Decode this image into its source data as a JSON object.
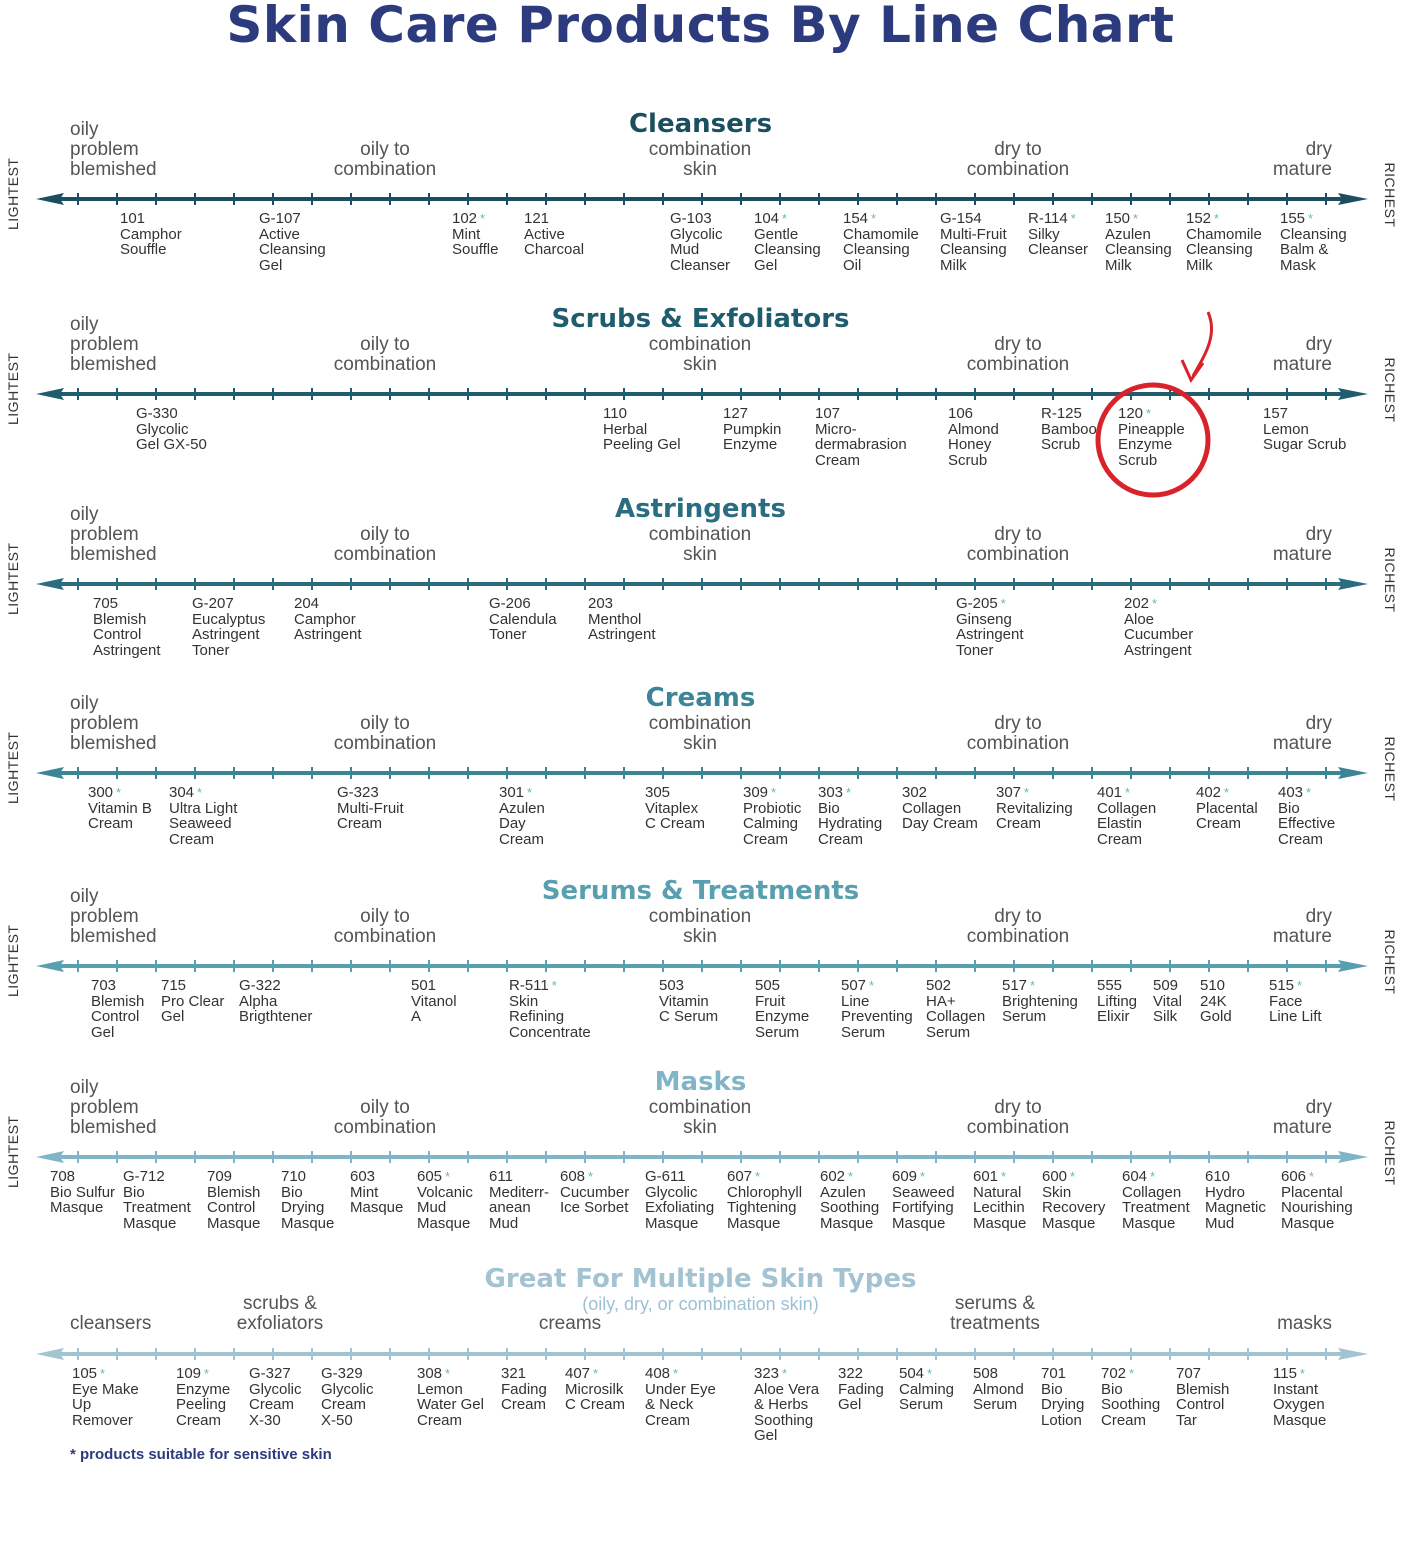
{
  "title": "Skin Care Products By Line Chart",
  "side_labels": {
    "left": "LIGHTEST",
    "right": "RICHEST"
  },
  "skin_labels": {
    "oily": "oily\nproblem\nblemished",
    "oily_combo": "oily to\ncombination",
    "combo": "combination\nskin",
    "dry_combo": "dry to\ncombination",
    "dry": "dry\nmature"
  },
  "sections": [
    {
      "title": "Cleansers",
      "color": "#1b4f5f",
      "items": [
        {
          "code": "101",
          "star": "",
          "name": "Camphor\nSouffle"
        },
        {
          "code": "G-107",
          "star": "",
          "name": "Active\nCleansing\nGel"
        },
        {
          "code": "102",
          "star": "*",
          "name": "Mint\nSouffle"
        },
        {
          "code": "121",
          "star": "",
          "name": "Active\nCharcoal"
        },
        {
          "code": "G-103",
          "star": "",
          "name": "Glycolic\nMud\nCleanser"
        },
        {
          "code": "104",
          "star": "*",
          "name": "Gentle\nCleansing\nGel"
        },
        {
          "code": "154",
          "star": "*",
          "name": "Chamomile\nCleansing\nOil"
        },
        {
          "code": "G-154",
          "star": "",
          "name": "Multi-Fruit\nCleansing\nMilk"
        },
        {
          "code": "R-114",
          "star": "*",
          "name": "Silky\nCleanser"
        },
        {
          "code": "150",
          "star": "*",
          "name": "Azulen\nCleansing\nMilk"
        },
        {
          "code": "152",
          "star": "*",
          "name": "Chamomile\nCleansing\nMilk"
        },
        {
          "code": "155",
          "star": "*",
          "name": "Cleansing\nBalm &\nMask"
        }
      ]
    },
    {
      "title": "Scrubs & Exfoliators",
      "color": "#1f5c6d",
      "items": [
        {
          "code": "G-330",
          "star": "",
          "name": "Glycolic\nGel GX-50"
        },
        {
          "code": "110",
          "star": "",
          "name": "Herbal\nPeeling Gel"
        },
        {
          "code": "127",
          "star": "",
          "name": "Pumpkin\nEnzyme"
        },
        {
          "code": "107",
          "star": "",
          "name": "Micro-\ndermabrasion\nCream"
        },
        {
          "code": "106",
          "star": "",
          "name": "Almond\nHoney\nScrub"
        },
        {
          "code": "R-125",
          "star": "",
          "name": "Bamboo\nScrub"
        },
        {
          "code": "120",
          "star": "*",
          "name": "Pineapple\nEnzyme\nScrub"
        },
        {
          "code": "157",
          "star": "",
          "name": "Lemon\nSugar Scrub"
        }
      ]
    },
    {
      "title": "Astringents",
      "color": "#2a6d80",
      "items": [
        {
          "code": "705",
          "star": "",
          "name": "Blemish\nControl\nAstringent"
        },
        {
          "code": "G-207",
          "star": "",
          "name": "Eucalyptus\nAstringent\nToner"
        },
        {
          "code": "204",
          "star": "",
          "name": "Camphor\nAstringent"
        },
        {
          "code": "G-206",
          "star": "",
          "name": "Calendula\nToner"
        },
        {
          "code": "203",
          "star": "",
          "name": "Menthol\nAstringent"
        },
        {
          "code": "G-205",
          "star": "*",
          "name": "Ginseng\nAstringent\nToner"
        },
        {
          "code": "202",
          "star": "*",
          "name": "Aloe\nCucumber\nAstringent"
        }
      ]
    },
    {
      "title": "Creams",
      "color": "#3b8597",
      "items": [
        {
          "code": "300",
          "star": "*",
          "name": "Vitamin B\nCream"
        },
        {
          "code": "304",
          "star": "*",
          "name": "Ultra Light\nSeaweed\nCream"
        },
        {
          "code": "G-323",
          "star": "",
          "name": "Multi-Fruit\nCream"
        },
        {
          "code": "301",
          "star": "*",
          "name": "Azulen\nDay\nCream"
        },
        {
          "code": "305",
          "star": "",
          "name": "Vitaplex\nC Cream"
        },
        {
          "code": "309",
          "star": "*",
          "name": "Probiotic\nCalming\nCream"
        },
        {
          "code": "303",
          "star": "*",
          "name": "Bio\nHydrating\nCream"
        },
        {
          "code": "302",
          "star": "",
          "name": "Collagen\nDay Cream"
        },
        {
          "code": "307",
          "star": "*",
          "name": "Revitalizing\nCream"
        },
        {
          "code": "401",
          "star": "*",
          "name": "Collagen\nElastin\nCream"
        },
        {
          "code": "402",
          "star": "*",
          "name": "Placental\nCream"
        },
        {
          "code": "403",
          "star": "*",
          "name": "Bio\nEffective\nCream"
        }
      ]
    },
    {
      "title": "Serums & Treatments",
      "color": "#5a9fb0",
      "items": [
        {
          "code": "703",
          "star": "",
          "name": "Blemish\nControl\nGel"
        },
        {
          "code": "715",
          "star": "",
          "name": "Pro Clear\nGel"
        },
        {
          "code": "G-322",
          "star": "",
          "name": "Alpha\nBrigthtener"
        },
        {
          "code": "501",
          "star": "",
          "name": "Vitanol\nA"
        },
        {
          "code": "R-511",
          "star": "*",
          "name": "Skin\nRefining\nConcentrate"
        },
        {
          "code": "503",
          "star": "",
          "name": "Vitamin\nC Serum"
        },
        {
          "code": "505",
          "star": "",
          "name": "Fruit\nEnzyme\nSerum"
        },
        {
          "code": "507",
          "star": "*",
          "name": "Line\nPreventing\nSerum"
        },
        {
          "code": "502",
          "star": "",
          "name": "HA+\nCollagen\nSerum"
        },
        {
          "code": "517",
          "star": "*",
          "name": "Brightening\nSerum"
        },
        {
          "code": "555",
          "star": "",
          "name": "Lifting\nElixir"
        },
        {
          "code": "509",
          "star": "",
          "name": "Vital\nSilk"
        },
        {
          "code": "510",
          "star": "",
          "name": "24K\nGold"
        },
        {
          "code": "515",
          "star": "*",
          "name": "Face\nLine Lift"
        }
      ]
    },
    {
      "title": "Masks",
      "color": "#7fb5c7",
      "items": [
        {
          "code": "708",
          "star": "",
          "name": "Bio Sulfur\nMasque"
        },
        {
          "code": "G-712",
          "star": "",
          "name": "Bio\nTreatment\nMasque"
        },
        {
          "code": "709",
          "star": "",
          "name": "Blemish\nControl\nMasque"
        },
        {
          "code": "710",
          "star": "",
          "name": "Bio\nDrying\nMasque"
        },
        {
          "code": "603",
          "star": "",
          "name": "Mint\nMasque"
        },
        {
          "code": "605",
          "star": "*",
          "name": "Volcanic\nMud\nMasque"
        },
        {
          "code": "611",
          "star": "",
          "name": "Mediterr-\nanean\nMud"
        },
        {
          "code": "608",
          "star": "*",
          "name": "Cucumber\nIce Sorbet"
        },
        {
          "code": "G-611",
          "star": "",
          "name": "Glycolic\nExfoliating\nMasque"
        },
        {
          "code": "607",
          "star": "*",
          "name": "Chlorophyll\nTightening\nMasque"
        },
        {
          "code": "602",
          "star": "*",
          "name": "Azulen\nSoothing\nMasque"
        },
        {
          "code": "609",
          "star": "*",
          "name": "Seaweed\nFortifying\nMasque"
        },
        {
          "code": "601",
          "star": "*",
          "name": "Natural\nLecithin\nMasque"
        },
        {
          "code": "600",
          "star": "*",
          "name": "Skin\nRecovery\nMasque"
        },
        {
          "code": "604",
          "star": "*",
          "name": "Collagen\nTreatment\nMasque"
        },
        {
          "code": "610",
          "star": "",
          "name": "Hydro\nMagnetic\nMud"
        },
        {
          "code": "606",
          "star": "*",
          "name": "Placental\nNourishing\nMasque"
        }
      ]
    }
  ],
  "multi": {
    "title": "Great For Multiple Skin Types",
    "subtitle": "(oily, dry, or combination skin)",
    "color": "#a3c2d2",
    "labels": {
      "cleansers": "cleansers",
      "scrubs": "scrubs &\nexfoliators",
      "creams": "creams",
      "serums": "serums &\ntreatments",
      "masks": "masks"
    },
    "items": [
      {
        "code": "105",
        "star": "*",
        "name": "Eye Make\nUp\nRemover"
      },
      {
        "code": "109",
        "star": "*",
        "name": "Enzyme\nPeeling\nCream"
      },
      {
        "code": "G-327",
        "star": "",
        "name": "Glycolic\nCream\nX-30"
      },
      {
        "code": "G-329",
        "star": "",
        "name": "Glycolic\nCream\nX-50"
      },
      {
        "code": "308",
        "star": "*",
        "name": "Lemon\nWater Gel\nCream"
      },
      {
        "code": "321",
        "star": "",
        "name": "Fading\nCream"
      },
      {
        "code": "407",
        "star": "*",
        "name": "Microsilk\nC Cream"
      },
      {
        "code": "408",
        "star": "*",
        "name": "Under Eye\n& Neck\nCream"
      },
      {
        "code": "323",
        "star": "*",
        "name": "Aloe Vera\n& Herbs\nSoothing\nGel"
      },
      {
        "code": "322",
        "star": "",
        "name": "Fading\nGel"
      },
      {
        "code": "504",
        "star": "*",
        "name": "Calming\nSerum"
      },
      {
        "code": "508",
        "star": "",
        "name": "Almond\nSerum"
      },
      {
        "code": "701",
        "star": "",
        "name": "Bio\nDrying\nLotion"
      },
      {
        "code": "702",
        "star": "*",
        "name": "Bio\nSoothing\nCream"
      },
      {
        "code": "707",
        "star": "",
        "name": "Blemish\nControl\nTar"
      },
      {
        "code": "115",
        "star": "*",
        "name": "Instant\nOxygen\nMasque"
      }
    ]
  },
  "footnote": "* products suitable for sensitive skin",
  "highlight": {
    "item": "120 Pineapple Enzyme Scrub",
    "color": "#d8232a"
  },
  "title_color": "#2c3b7e"
}
